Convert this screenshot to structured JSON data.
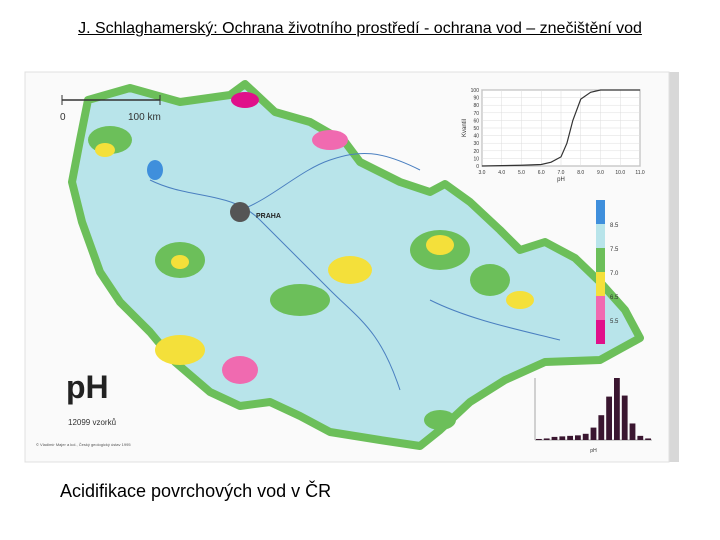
{
  "header": {
    "title": "J. Schlaghamerský: Ochrana životního prostředí - ochrana vod – znečištění vod"
  },
  "map": {
    "scale_labels": [
      "0",
      "100 km"
    ],
    "city": "PRAHA",
    "title": "pH",
    "samples": "12099 vzorků",
    "credit": "© Vladimír Majer a kol., Český geologický ústav 1995",
    "legend": {
      "labels": [
        "8.5",
        "7.5",
        "7.0",
        "6.5",
        "5.5"
      ],
      "colors": [
        "#3f8fdc",
        "#b8e4ea",
        "#6cbf5a",
        "#f4e03a",
        "#f06ab0",
        "#e0108a"
      ]
    },
    "cumulative": {
      "type": "line",
      "y_label": "Kvantil",
      "x_label": "pH",
      "xlim": [
        3,
        11
      ],
      "ylim": [
        0,
        100
      ],
      "xticks": [
        {
          "value": 3,
          "label": "3.0"
        },
        {
          "value": 4,
          "label": "4.0"
        },
        {
          "value": 5,
          "label": "5.0"
        },
        {
          "value": 6,
          "label": "6.0"
        },
        {
          "value": 7,
          "label": "7.0"
        },
        {
          "value": 8,
          "label": "8.0"
        },
        {
          "value": 9,
          "label": "9.0"
        },
        {
          "value": 10,
          "label": "10.0"
        },
        {
          "value": 11,
          "label": "11.0"
        }
      ],
      "yticks": [
        0,
        10,
        20,
        30,
        40,
        50,
        60,
        70,
        80,
        90,
        100
      ],
      "x": [
        3,
        4,
        5,
        6,
        6.5,
        7,
        7.3,
        7.6,
        8,
        8.5,
        9,
        11
      ],
      "values": [
        0,
        0.5,
        1,
        2,
        5,
        12,
        30,
        60,
        88,
        97,
        100,
        100
      ],
      "color": "#333333"
    },
    "histogram": {
      "type": "bar",
      "x_label": "pH",
      "ylim": [
        0,
        6000
      ],
      "values": [
        100,
        150,
        300,
        350,
        400,
        450,
        600,
        1200,
        2400,
        4200,
        6000,
        4300,
        1600,
        400,
        150
      ],
      "color": "#3a1630"
    }
  },
  "caption": "Acidifikace povrchových vod v ČR"
}
